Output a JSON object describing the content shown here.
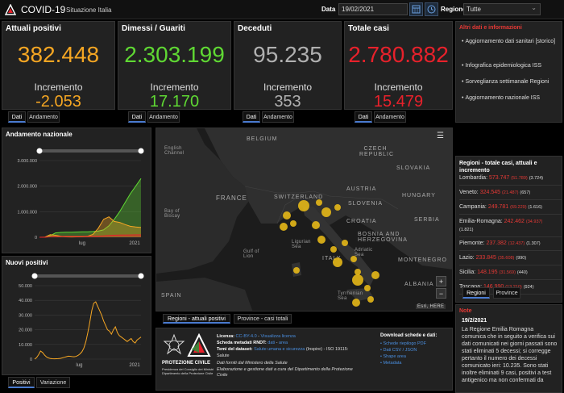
{
  "header": {
    "title": "COVID-19",
    "subtitle": "Situazione Italia",
    "date_label": "Data",
    "date_value": "19/02/2021",
    "region_label": "Regione",
    "region_value": "Tutte"
  },
  "stats": [
    {
      "title": "Attuali positivi",
      "value": "382.448",
      "inc_label": "Incremento",
      "inc": "-2.053",
      "color": "#f5a623",
      "inc_color": "#f5a623"
    },
    {
      "title": "Dimessi / Guariti",
      "value": "2.303.199",
      "inc_label": "Incremento",
      "inc": "17.170",
      "color": "#5fd833",
      "inc_color": "#5fd833"
    },
    {
      "title": "Deceduti",
      "value": "95.235",
      "inc_label": "Incremento",
      "inc": "353",
      "color": "#b0b0b0",
      "inc_color": "#b0b0b0"
    },
    {
      "title": "Totale casi",
      "value": "2.780.882",
      "inc_label": "Incremento",
      "inc": "15.479",
      "color": "#e8212b",
      "inc_color": "#e8212b"
    }
  ],
  "stat_tabs": [
    "Dati",
    "Andamento"
  ],
  "links": {
    "title": "Altri dati e informazioni",
    "items": [
      "Aggiornamento dati sanitari [storico]",
      "Infografica epidemiologica ISS",
      "Sorveglianza settimanale Regioni",
      "Aggiornamento nazionale ISS"
    ]
  },
  "andamento": {
    "title": "Andamento nazionale",
    "tabs": [
      "Dati",
      "Andamento"
    ]
  },
  "nuovi": {
    "title": "Nuovi positivi",
    "tabs": [
      "Positivi",
      "Variazione"
    ]
  },
  "map": {
    "tabs": [
      "Regioni - attuali positivi",
      "Province - casi totali"
    ],
    "labels": [
      "BELGIUM",
      "CZECH REPUBLIC",
      "SLOVAKIA",
      "FRANCE",
      "SWITZERLAND",
      "AUSTRIA",
      "HUNGARY",
      "SLOVENIA",
      "CROATIA",
      "SERBIA",
      "BOSNIA AND HERZEGOVINA",
      "MONTENEGRO",
      "ITALY",
      "ALBANIA",
      "SPAIN",
      "English Channel",
      "Bay of Biscay",
      "Gulf of Lion",
      "Ligurian Sea",
      "Adriatic Sea",
      "Tyrrhenian Sea",
      "Esri, HERE"
    ]
  },
  "chart_data": [
    {
      "type": "area",
      "title": "Andamento nazionale",
      "x_ticks": [
        "lug",
        "2021"
      ],
      "y_ticks": [
        "0",
        "1.000.000",
        "2.000.000",
        "3.000.000"
      ],
      "ylim": [
        0,
        3000000
      ],
      "series": [
        {
          "color": "#5fd833",
          "values": [
            0,
            0,
            60000,
            170000,
            190000,
            195000,
            200000,
            205000,
            210000,
            215000,
            225000,
            240000,
            290000,
            450000,
            700000,
            1000000,
            1350000,
            1700000,
            2000000,
            2300000
          ]
        },
        {
          "color": "#f5a623",
          "values": [
            0,
            2000,
            100000,
            80000,
            40000,
            15000,
            12000,
            15000,
            20000,
            40000,
            110000,
            350000,
            700000,
            800000,
            620000,
            580000,
            500000,
            430000,
            400000,
            382000
          ]
        },
        {
          "color": "#e8212b",
          "values": [
            0,
            0,
            20000,
            30000,
            34000,
            35000,
            35000,
            35500,
            35800,
            36500,
            38000,
            45000,
            55000,
            70000,
            80000,
            86000,
            90000,
            92000,
            94000,
            95000
          ]
        }
      ]
    },
    {
      "type": "line",
      "title": "Nuovi positivi",
      "x_ticks": [
        "lug",
        "2021"
      ],
      "y_ticks": [
        "0",
        "10.000",
        "20.000",
        "30.000",
        "40.000",
        "50.000"
      ],
      "ylim": [
        0,
        50000
      ],
      "series": [
        {
          "color": "#f5a623",
          "values": [
            0,
            1000,
            3000,
            5500,
            4500,
            2800,
            1500,
            800,
            400,
            250,
            200,
            250,
            350,
            500,
            800,
            1200,
            1600,
            2000,
            1900,
            1700,
            1600,
            1800,
            2500,
            3500,
            5000,
            7500,
            12000,
            18000,
            25000,
            33000,
            38000,
            39000,
            36000,
            33000,
            30000,
            26000,
            23000,
            20000,
            19000,
            17000,
            20000,
            22000,
            18000,
            16000,
            15000,
            14000,
            13000,
            12000,
            13000,
            14000,
            12000,
            11000,
            13000,
            14000,
            15000
          ]
        }
      ]
    }
  ],
  "regions": {
    "title": "Regioni - totale casi, attuali e incremento",
    "rows": [
      {
        "name": "Lombardia:",
        "total": "573.747",
        "sub": "(51.789)",
        "inc": "(3.724)"
      },
      {
        "name": "Veneto:",
        "total": "324.545",
        "sub": "(21.487)",
        "inc": "(657)"
      },
      {
        "name": "Campania:",
        "total": "249.781",
        "sub": "(69.229)",
        "inc": "(1.616)"
      },
      {
        "name": "Emilia-Romagna:",
        "total": "242.462",
        "sub": "(34.937)",
        "inc": "(1.821)"
      },
      {
        "name": "Piemonte:",
        "total": "237.382",
        "sub": "(12.437)",
        "inc": "(1.307)"
      },
      {
        "name": "Lazio:",
        "total": "233.845",
        "sub": "(35.608)",
        "inc": "(990)"
      },
      {
        "name": "Sicilia:",
        "total": "148.195",
        "sub": "(31.569)",
        "inc": "(440)"
      },
      {
        "name": "Toscana:",
        "total": "146.990",
        "sub": "(13.210)",
        "inc": "(924)"
      }
    ],
    "tabs": [
      "Regioni",
      "Province"
    ]
  },
  "notes": {
    "title": "Note",
    "date": "19/2/2021",
    "text": "La Regione Emilia Romagna comunica che in seguito a verifica sui dati comunicati nei giorni passati sono stati eliminati 5 decessi; si corregge pertanto il numero dei decessi comunicato ieri: 10.235. Sono stati inoltre eliminati 9 casi, positivi a test antigenico ma non confermati da"
  },
  "info": {
    "pc_line1": "PROTEZIONE CIVILE",
    "pc_line2": "Presidenza del Consiglio dei Ministri",
    "pc_line3": "Dipartimento della Protezione Civile",
    "licenza_label": "Licenza:",
    "licenza_value": "CC-BY-4.0",
    "licenza_link": "Visualizza licenza",
    "metadati_label": "Scheda metadati RNDT:",
    "metadati_link1": "dati",
    "metadati_link2": "area",
    "temi_label": "Temi del dataset:",
    "temi_link": "Salute umana e sicurezza",
    "temi_rest": "(Inspire) - ISO 19115:",
    "temi_salute": "Salute",
    "fonti": "Dati forniti dal Ministero della Salute",
    "elab1": "Elaborazione e gestione dati a cura del Dipartimento della Protezione",
    "elab2": "Civile",
    "dl_title": "Download schede e dati:",
    "dl_items": [
      "Schede riepilogo PDF",
      "Dati CSV / JSON",
      "Shape area",
      "Metadata"
    ]
  }
}
